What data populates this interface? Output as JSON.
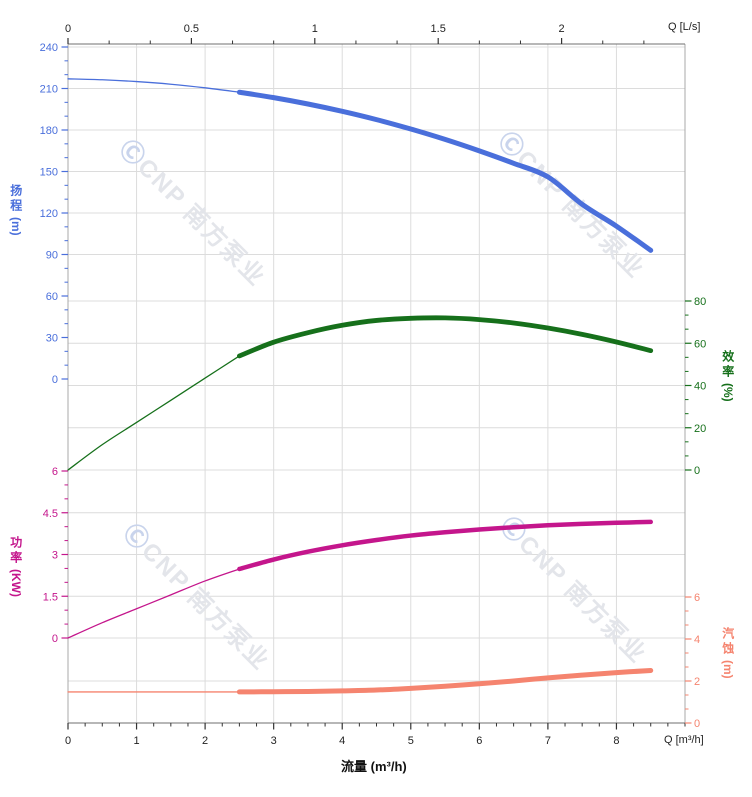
{
  "watermark": {
    "text": "CNP 南方泵业",
    "logo_glyph": "Ⓒ",
    "text_color": "#e3e5ea",
    "logo_color": "#c9d4ec"
  },
  "labels": {
    "flow_title": "流量 (m³/h)",
    "top_axis_unit": "Q [L/s]",
    "bottom_axis_unit": "Q [m³/h]"
  },
  "colors": {
    "grid": "#dcdcdc",
    "frame_side": "#a8a8a8",
    "frame_topbottom": "#6f6f6f",
    "x_tick": "#333333",
    "x_tick_text": "#222222"
  },
  "chart_data": {
    "type": "line",
    "x_axis_bottom": {
      "unit_label": "Q [m³/h]",
      "title": "流量 (m³/h)",
      "min": 0,
      "max": 9,
      "major_ticks": [
        0,
        1,
        2,
        3,
        4,
        5,
        6,
        7,
        8
      ],
      "minor_step": 0.25
    },
    "x_axis_top": {
      "unit_label": "Q [L/s]",
      "min": 0,
      "max": 2.5,
      "major_ticks": [
        0,
        0.5,
        1,
        1.5,
        2
      ],
      "minor_step": 0.16667
    },
    "y_axes": [
      {
        "id": "head",
        "title": "扬程",
        "unit": "(m)",
        "side": "left",
        "min": 0,
        "max": 240,
        "major_ticks": [
          0,
          30,
          60,
          90,
          120,
          150,
          180,
          210,
          240
        ],
        "minor_step": 10,
        "color": "#4a6fdb"
      },
      {
        "id": "efficiency",
        "title": "效率",
        "unit": "(%)",
        "side": "right",
        "min": 0,
        "max": 80,
        "major_ticks": [
          0,
          20,
          40,
          60,
          80
        ],
        "minor_step": 6.6667,
        "color": "#16701b"
      },
      {
        "id": "power",
        "title": "功率",
        "unit": "(KW)",
        "side": "left",
        "min": 0,
        "max": 6,
        "major_ticks": [
          0,
          1.5,
          3,
          4.5,
          6
        ],
        "minor_step": 0.5,
        "color": "#c4168c"
      },
      {
        "id": "npsh",
        "title": "汽蚀",
        "unit": "(m)",
        "side": "right",
        "min": 0,
        "max": 6,
        "major_ticks": [
          0,
          2,
          4,
          6
        ],
        "minor_step": 0.6667,
        "color": "#f5846f"
      }
    ],
    "series": [
      {
        "id": "head-curve",
        "name": "扬程",
        "axis": "head",
        "color": "#4a6fdb",
        "rated_range_start_q": 2.5,
        "thick_width": 5,
        "points": [
          [
            0,
            217
          ],
          [
            0.5,
            216.3
          ],
          [
            1,
            215
          ],
          [
            1.5,
            213.1
          ],
          [
            2,
            210.5
          ],
          [
            2.5,
            207.3
          ],
          [
            3,
            203.4
          ],
          [
            3.5,
            198.8
          ],
          [
            4,
            193.5
          ],
          [
            4.5,
            187.5
          ],
          [
            5,
            180.7
          ],
          [
            5.5,
            173.2
          ],
          [
            6,
            164.9
          ],
          [
            6.5,
            155.9
          ],
          [
            7,
            146.1
          ],
          [
            7.5,
            126.3
          ],
          [
            8,
            110.5
          ],
          [
            8.5,
            93
          ]
        ]
      },
      {
        "id": "efficiency-curve",
        "name": "效率",
        "axis": "efficiency",
        "color": "#16701b",
        "rated_range_start_q": 2.5,
        "thick_width": 4.8,
        "points": [
          [
            0,
            0
          ],
          [
            0.5,
            12
          ],
          [
            1,
            22.5
          ],
          [
            1.5,
            33
          ],
          [
            2,
            43.5
          ],
          [
            2.5,
            54
          ],
          [
            3,
            60.5
          ],
          [
            3.5,
            65
          ],
          [
            4,
            68.5
          ],
          [
            4.5,
            70.8
          ],
          [
            5,
            71.8
          ],
          [
            5.5,
            72
          ],
          [
            6,
            71.2
          ],
          [
            6.5,
            69.6
          ],
          [
            7,
            67.2
          ],
          [
            7.5,
            64.2
          ],
          [
            8,
            60.6
          ],
          [
            8.5,
            56.5
          ]
        ]
      },
      {
        "id": "power-curve",
        "name": "功率",
        "axis": "power",
        "color": "#c4168c",
        "rated_range_start_q": 2.5,
        "thick_width": 4.5,
        "points": [
          [
            0,
            0
          ],
          [
            0.5,
            0.55
          ],
          [
            1,
            1.05
          ],
          [
            1.5,
            1.55
          ],
          [
            2,
            2.05
          ],
          [
            2.5,
            2.48
          ],
          [
            3,
            2.82
          ],
          [
            3.5,
            3.1
          ],
          [
            4,
            3.33
          ],
          [
            4.5,
            3.52
          ],
          [
            5,
            3.68
          ],
          [
            5.5,
            3.8
          ],
          [
            6,
            3.9
          ],
          [
            6.5,
            3.98
          ],
          [
            7,
            4.05
          ],
          [
            7.5,
            4.1
          ],
          [
            8,
            4.14
          ],
          [
            8.5,
            4.17
          ]
        ]
      },
      {
        "id": "npsh-curve",
        "name": "汽蚀",
        "axis": "npsh",
        "color": "#f5846f",
        "rated_range_start_q": 2.5,
        "thick_width": 5,
        "points": [
          [
            0,
            1.48
          ],
          [
            0.5,
            1.48
          ],
          [
            1,
            1.48
          ],
          [
            1.5,
            1.48
          ],
          [
            2,
            1.48
          ],
          [
            2.5,
            1.48
          ],
          [
            3,
            1.49
          ],
          [
            3.5,
            1.5
          ],
          [
            4,
            1.53
          ],
          [
            4.5,
            1.57
          ],
          [
            5,
            1.65
          ],
          [
            5.5,
            1.75
          ],
          [
            6,
            1.87
          ],
          [
            6.5,
            2.0
          ],
          [
            7,
            2.15
          ],
          [
            7.5,
            2.28
          ],
          [
            8,
            2.4
          ],
          [
            8.5,
            2.5
          ]
        ]
      }
    ]
  }
}
